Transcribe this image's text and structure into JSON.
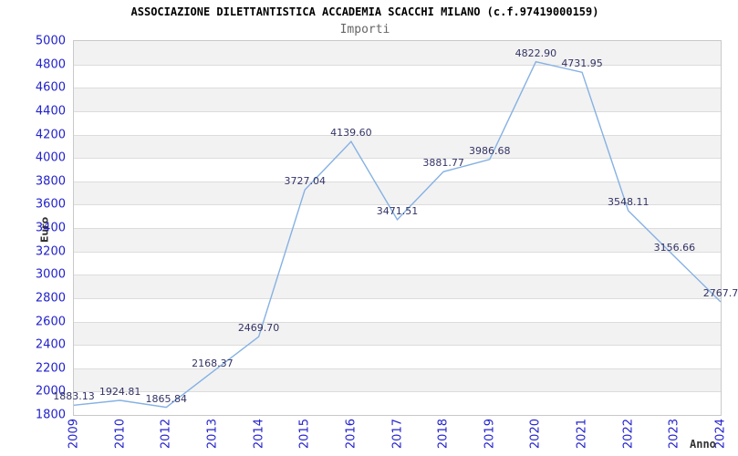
{
  "title": "ASSOCIAZIONE DILETTANTISTICA ACCADEMIA SCACCHI MILANO (c.f.97419000159)",
  "subtitle": "Importi",
  "chart_data": {
    "type": "line",
    "categories": [
      "2009",
      "2010",
      "2012",
      "2013",
      "2014",
      "2015",
      "2016",
      "2017",
      "2018",
      "2019",
      "2020",
      "2021",
      "2022",
      "2023",
      "2024"
    ],
    "values": [
      1883.13,
      1924.81,
      1865.84,
      2168.37,
      2469.7,
      3727.04,
      4139.6,
      3471.51,
      3881.77,
      3986.68,
      4822.9,
      4731.95,
      3548.11,
      3156.66,
      2767.7
    ],
    "point_labels": [
      "1883.13",
      "1924.81",
      "1865.84",
      "2168.37",
      "2469.70",
      "3727.04",
      "4139.60",
      "3471.51",
      "3881.77",
      "3986.68",
      "4822.90",
      "4731.95",
      "3548.11",
      "3156.66",
      "2767.7"
    ],
    "xlabel": "Anno",
    "ylabel": "Euro",
    "ylim": [
      1800,
      5000
    ],
    "ytick_step": 200,
    "grid": "horizontal-bands",
    "legend": "none",
    "colors": {
      "line": "#85b1e3",
      "tick_label": "#2222cc",
      "point_label": "#333366",
      "band": "#f2f2f2",
      "gridline": "#dcdcdc",
      "border": "#c9c9c9",
      "axis_title": "#333333",
      "title": "#000000",
      "subtitle": "#666666"
    }
  }
}
